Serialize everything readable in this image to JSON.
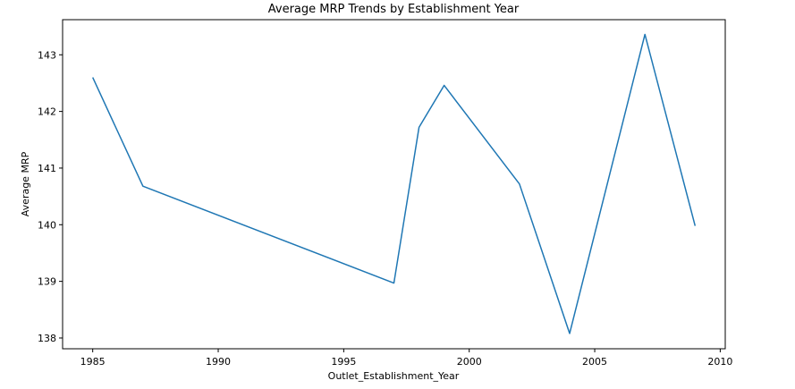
{
  "chart_data": {
    "type": "line",
    "title": "Average MRP Trends by Establishment Year",
    "xlabel": "Outlet_Establishment_Year",
    "ylabel": "Average MRP",
    "x": [
      1985,
      1987,
      1997,
      1998,
      1999,
      2002,
      2004,
      2007,
      2009
    ],
    "series": [
      {
        "values": [
          142.6,
          140.68,
          138.97,
          141.72,
          142.46,
          140.72,
          138.08,
          143.36,
          139.98
        ],
        "color": "#1f77b4"
      }
    ],
    "xlim": [
      1983.8,
      2010.2
    ],
    "ylim": [
      137.81,
      143.62
    ],
    "xticks": [
      1985,
      1990,
      1995,
      2000,
      2005,
      2010
    ],
    "yticks": [
      138,
      139,
      140,
      141,
      142,
      143
    ],
    "grid": false,
    "legend": "none"
  }
}
